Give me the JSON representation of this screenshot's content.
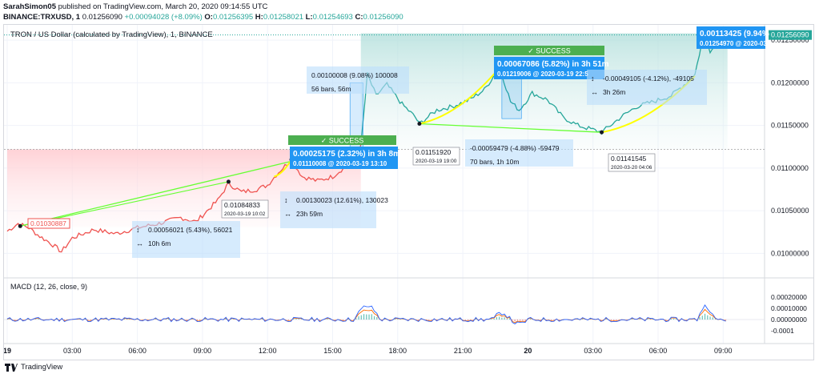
{
  "header": {
    "author": "SarahSimon05",
    "published": "published on TradingView.com, March 20, 2020 09:14:55 UTC",
    "symbol": "BINANCE:TRXUSD, 1",
    "last": "0.01256090",
    "change": "+0.00094028 (+8.09%)",
    "o_label": "O:",
    "o": "0.01256395",
    "h_label": "H:",
    "h": "0.01258021",
    "l_label": "L:",
    "l": "0.01254693",
    "c_label": "C:",
    "c": "0.01256090"
  },
  "footer": {
    "brand": "TradingView"
  },
  "chart_data": {
    "type": "line",
    "title": "TRON / US Dollar (calculated by TradingView), 1, BINANCE",
    "x_ticks": [
      "19",
      "03:00",
      "06:00",
      "09:00",
      "12:00",
      "15:00",
      "18:00",
      "21:00",
      "20",
      "03:00",
      "06:00",
      "09:00"
    ],
    "y_ticks": [
      "0.01250000",
      "0.01200000",
      "0.01150000",
      "0.01100000",
      "0.01050000",
      "0.01000000"
    ],
    "ylim": [
      0.00975,
      0.01268
    ],
    "last_price_label": "0.01256090",
    "series": [
      {
        "values_by_hour": [
          [
            0,
            0.01026
          ],
          [
            0.5,
            0.01035
          ],
          [
            1,
            0.0103
          ],
          [
            1.5,
            0.0102
          ],
          [
            2,
            0.01012
          ],
          [
            2.5,
            0.01002
          ],
          [
            3,
            0.01018
          ],
          [
            4,
            0.01028
          ],
          [
            5,
            0.01023
          ],
          [
            6,
            0.0103
          ],
          [
            7,
            0.01035
          ],
          [
            8,
            0.01042
          ],
          [
            8.7,
            0.01037
          ],
          [
            9.7,
            0.01062
          ],
          [
            10.2,
            0.01082
          ],
          [
            10.8,
            0.01072
          ],
          [
            11.5,
            0.01075
          ],
          [
            12,
            0.0108
          ],
          [
            12.5,
            0.01095
          ],
          [
            13.1,
            0.0111
          ],
          [
            13.6,
            0.0109
          ],
          [
            14.3,
            0.01085
          ],
          [
            15,
            0.0109
          ],
          [
            15.5,
            0.011
          ],
          [
            16.0,
            0.01114
          ],
          [
            16.3,
            0.01125
          ],
          [
            16.6,
            0.0121
          ],
          [
            17.0,
            0.01185
          ],
          [
            17.5,
            0.01198
          ],
          [
            18.2,
            0.01175
          ],
          [
            18.8,
            0.0116
          ],
          [
            19.0,
            0.01152
          ],
          [
            19.8,
            0.01168
          ],
          [
            20.5,
            0.01172
          ],
          [
            21.3,
            0.0118
          ],
          [
            22.0,
            0.01192
          ],
          [
            22.7,
            0.01218
          ],
          [
            23.2,
            0.01178
          ],
          [
            23.6,
            0.01168
          ],
          [
            24.2,
            0.01188
          ],
          [
            24.9,
            0.0118
          ],
          [
            25.6,
            0.0116
          ],
          [
            26.3,
            0.0115
          ],
          [
            27.0,
            0.01145
          ],
          [
            27.4,
            0.01142
          ],
          [
            28.3,
            0.0116
          ],
          [
            29.0,
            0.01172
          ],
          [
            29.8,
            0.01178
          ],
          [
            30.6,
            0.01185
          ],
          [
            31.3,
            0.012
          ],
          [
            31.7,
            0.0121
          ],
          [
            32.0,
            0.01245
          ],
          [
            32.2,
            0.01255
          ],
          [
            32.4,
            0.01238
          ],
          [
            32.8,
            0.01245
          ],
          [
            33.2,
            0.01258
          ]
        ]
      }
    ],
    "macd": {
      "title": "MACD (12, 26, close, 9)",
      "y_ticks": [
        "0.00020000",
        "0.00010000",
        "0.00000000",
        "-0.0001"
      ]
    },
    "annotations": {
      "start_label": "0.01030887",
      "box1": {
        "line1": "0.00056021 (5.43%), 56021",
        "line2": "10h 6m"
      },
      "pt1": {
        "price": "0.01084833",
        "date": "2020-03-19 10:02"
      },
      "success1": "SUCCESS",
      "blue1": {
        "line1": "0.00025175 (2.32%) in 3h 8m",
        "line2": "0.01110008 @ 2020-03-19  13:10"
      },
      "box2": {
        "line1": "0.00130023 (12.61%), 130023",
        "line2": "23h 59m"
      },
      "box3": {
        "line1": "0.00100008 (9.08%) 100008",
        "line2": "56 bars, 56m"
      },
      "pt2": {
        "price": "0.01151920",
        "date": "2020-03-19 19:00"
      },
      "box4": {
        "line1": "-0.00059479 (-4.88%) -59479",
        "line2": "70 bars, 1h 10m"
      },
      "success2": "SUCCESS",
      "blue2": {
        "line1": "0.00067086 (5.82%) in 3h 51m",
        "line2": "0.01219006 @ 2020-03-19  22:5"
      },
      "box5": {
        "line1": "-0.00049105 (-4.12%), -49105",
        "line2": "3h 26m"
      },
      "pt3": {
        "price": "0.01141545",
        "date": "2020-03-20 04:06"
      },
      "blue3": {
        "line1": "0.00113425 (9.94%",
        "line2": "0.01254970 @ 2020-03-"
      }
    },
    "colors": {
      "up": "#26a69a",
      "down": "#ef5350",
      "accent": "#2196f3",
      "success": "#4caf50",
      "trend": "#66ff33",
      "swing": "#ffff00",
      "macd": "#2962ff",
      "signal": "#ff6d00"
    }
  }
}
